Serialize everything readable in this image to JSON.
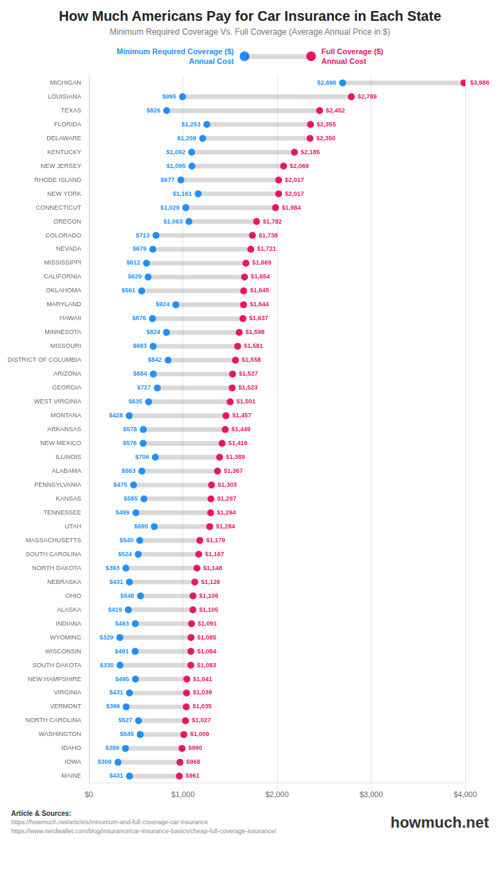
{
  "chart_data": {
    "type": "dumbbell",
    "orientation": "horizontal",
    "title": "How Much Americans Pay for Car Insurance in Each State",
    "subtitle": "Minimum Required Coverage Vs. Full Coverage (Average Annual Price in $)",
    "categories": [
      "MICHIGAN",
      "LOUISIANA",
      "TEXAS",
      "FLORIDA",
      "DELAWARE",
      "KENTUCKY",
      "NEW JERSEY",
      "RHODE ISLAND",
      "NEW YORK",
      "CONNECTICUT",
      "OREGON",
      "COLORADO",
      "NEVADA",
      "MISSISSIPPI",
      "CALIFORNIA",
      "OKLAHOMA",
      "MARYLAND",
      "HAWAII",
      "MINNESOTA",
      "MISSOURI",
      "DISTRICT OF COLUMBIA",
      "ARIZONA",
      "GEORGIA",
      "WEST VIRGINIA",
      "MONTANA",
      "ARKANSAS",
      "NEW MEXICO",
      "ILLINOIS",
      "ALABAMA",
      "PENNSYLVANIA",
      "KANSAS",
      "TENNESSEE",
      "UTAH",
      "MASSACHUSETTS",
      "SOUTH CAROLINA",
      "NORTH DAKOTA",
      "NEBRASKA",
      "OHIO",
      "ALASKA",
      "INDIANA",
      "WYOMING",
      "WISCONSIN",
      "SOUTH DAKOTA",
      "NEW HAMPSHIRE",
      "VIRGINIA",
      "VERMONT",
      "NORTH CAROLINA",
      "WASHINGTON",
      "IDAHO",
      "IOWA",
      "MAINE"
    ],
    "series": [
      {
        "name": "Minimum Required Coverage ($)\nAnnual Cost",
        "color": "#1e90ff",
        "values": [
          2696,
          995,
          826,
          1253,
          1209,
          1092,
          1095,
          977,
          1161,
          1029,
          1063,
          713,
          679,
          612,
          629,
          561,
          924,
          676,
          824,
          683,
          842,
          684,
          727,
          635,
          428,
          578,
          576,
          706,
          563,
          475,
          585,
          499,
          695,
          540,
          524,
          393,
          431,
          548,
          419,
          493,
          329,
          491,
          330,
          495,
          431,
          396,
          527,
          545,
          389,
          309,
          431
        ],
        "value_labels": [
          "$2,696",
          "$995",
          "$826",
          "$1,253",
          "$1,209",
          "$1,092",
          "$1,095",
          "$977",
          "$1,161",
          "$1,029",
          "$1,063",
          "$713",
          "$679",
          "$612",
          "$629",
          "$561",
          "$924",
          "$676",
          "$824",
          "$683",
          "$842",
          "$684",
          "$727",
          "$635",
          "$428",
          "$578",
          "$576",
          "$706",
          "$563",
          "$475",
          "$585",
          "$499",
          "$695",
          "$540",
          "$524",
          "$393",
          "$431",
          "$548",
          "$419",
          "$493",
          "$329",
          "$491",
          "$330",
          "$495",
          "$431",
          "$396",
          "$527",
          "$545",
          "$389",
          "$309",
          "$431"
        ]
      },
      {
        "name": "Full Coverage ($)\nAnnual Cost",
        "color": "#e8185e",
        "values": [
          3986,
          2789,
          2452,
          2355,
          2350,
          2185,
          2069,
          2017,
          2017,
          1984,
          1782,
          1738,
          1721,
          1669,
          1654,
          1645,
          1644,
          1637,
          1598,
          1581,
          1558,
          1527,
          1523,
          1501,
          1457,
          1449,
          1416,
          1389,
          1367,
          1303,
          1297,
          1294,
          1284,
          1179,
          1167,
          1148,
          1126,
          1106,
          1105,
          1091,
          1085,
          1084,
          1083,
          1041,
          1039,
          1035,
          1027,
          1009,
          990,
          968,
          961
        ],
        "value_labels": [
          "$3,986",
          "$2,789",
          "$2,452",
          "$2,355",
          "$2,350",
          "$2,185",
          "$2,069",
          "$2,017",
          "$2,017",
          "$1,984",
          "$1,782",
          "$1,738",
          "$1,721",
          "$1,669",
          "$1,654",
          "$1,645",
          "$1,644",
          "$1,637",
          "$1,598",
          "$1,581",
          "$1,558",
          "$1,527",
          "$1,523",
          "$1,501",
          "$1,457",
          "$1,449",
          "$1,416",
          "$1,389",
          "$1,367",
          "$1,303",
          "$1,297",
          "$1,294",
          "$1,284",
          "$1,179",
          "$1,167",
          "$1,148",
          "$1,126",
          "$1,106",
          "$1,105",
          "$1,091",
          "$1,085",
          "$1,084",
          "$1,083",
          "$1,041",
          "$1,039",
          "$1,035",
          "$1,027",
          "$1,009",
          "$990",
          "$968",
          "$961"
        ]
      }
    ],
    "xlim": [
      0,
      4000
    ],
    "xticks": [
      {
        "value": 0,
        "label": "$0"
      },
      {
        "value": 1000,
        "label": "$1,000"
      },
      {
        "value": 2000,
        "label": "$2,000"
      },
      {
        "value": 3000,
        "label": "$3,000"
      },
      {
        "value": 4000,
        "label": "$4,000"
      }
    ],
    "grid": true,
    "data_labels": true,
    "annotations": [
      "Article & Sources:",
      "https://howmuch.net/articles/minumum-and-full-coverage-car-insurance",
      "https://www.nerdwallet.com/blog/insurance/car-insurance-basics/cheap-full-coverage-insurance/",
      "howmuch.net"
    ]
  }
}
